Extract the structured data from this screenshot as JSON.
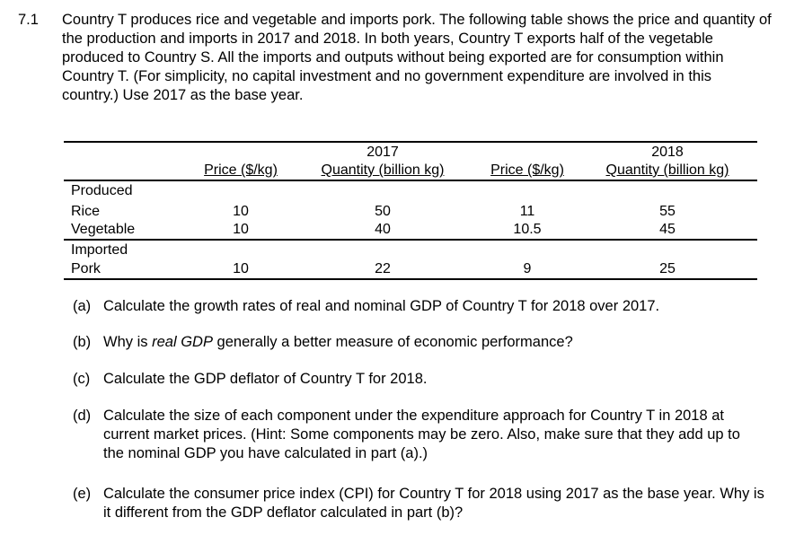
{
  "question": {
    "number": "7.1",
    "intro": "Country T produces rice and vegetable and imports pork. The following table shows the price and quantity of the production and imports in 2017 and 2018. In both years, Country T exports half of the vegetable produced to Country S. All the imports and outputs without being exported are for consumption within Country T. (For simplicity, no capital investment and no government expenditure are involved in this country.) Use 2017 as the base year."
  },
  "table": {
    "year_headers": [
      "2017",
      "2018"
    ],
    "column_headers": [
      "Price ($/kg)",
      "Quantity (billion kg)",
      "Price ($/kg)",
      "Quantity (billion kg)"
    ],
    "sections": [
      {
        "heading": "Produced",
        "rows": [
          {
            "label": "Rice",
            "values": [
              "10",
              "50",
              "11",
              "55"
            ]
          },
          {
            "label": "Vegetable",
            "values": [
              "10",
              "40",
              "10.5",
              "45"
            ]
          }
        ]
      },
      {
        "heading": "Imported",
        "rows": [
          {
            "label": "Pork",
            "values": [
              "10",
              "22",
              "9",
              "25"
            ]
          }
        ]
      }
    ]
  },
  "parts": [
    {
      "label": "(a)",
      "text": "Calculate the growth rates of real and nominal GDP of Country T for 2018 over 2017."
    },
    {
      "label": "(b)",
      "text_before": "Why is ",
      "text_italic": "real GDP",
      "text_after": " generally a better measure of economic performance?"
    },
    {
      "label": "(c)",
      "text": "Calculate the GDP deflator of Country T for 2018."
    },
    {
      "label": "(d)",
      "text": "Calculate the size of each component under the expenditure approach for Country T in 2018 at current market prices. (Hint: Some components may be zero. Also, make sure that they add up to the nominal GDP you have calculated in part (a).)"
    },
    {
      "label": "(e)",
      "text": "Calculate the consumer price index (CPI) for Country T for 2018 using 2017 as the base year. Why is it different from the GDP deflator calculated in part (b)?"
    }
  ]
}
